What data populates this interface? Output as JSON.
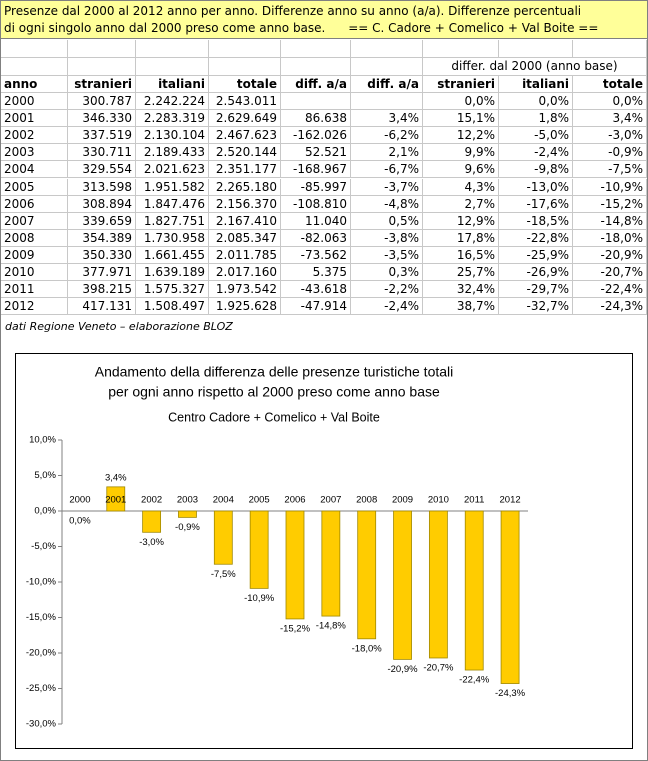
{
  "header": {
    "lines": [
      "Presenze dal 2000 al 2012 anno per anno. Differenze anno su anno (a/a). Differenze percentuali",
      "di ogni singolo anno dal 2000 preso come anno base.      == C. Cadore + Comelico + Val Boite =="
    ]
  },
  "table": {
    "group_header": "differ. dal 2000 (anno base)",
    "columns": [
      "anno",
      "stranieri",
      "italiani",
      "totale",
      "diff. a/a",
      "diff. a/a",
      "stranieri",
      "italiani",
      "totale"
    ],
    "rows": [
      [
        "2000",
        "300.787",
        "2.242.224",
        "2.543.011",
        null,
        null,
        "0,0%",
        "0,0%",
        "0,0%"
      ],
      [
        "2001",
        "346.330",
        "2.283.319",
        "2.629.649",
        "86.638",
        "3,4%",
        "15,1%",
        "1,8%",
        "3,4%"
      ],
      [
        "2002",
        "337.519",
        "2.130.104",
        "2.467.623",
        "-162.026",
        "-6,2%",
        "12,2%",
        "-5,0%",
        "-3,0%"
      ],
      [
        "2003",
        "330.711",
        "2.189.433",
        "2.520.144",
        "52.521",
        "2,1%",
        "9,9%",
        "-2,4%",
        "-0,9%"
      ],
      [
        "2004",
        "329.554",
        "2.021.623",
        "2.351.177",
        "-168.967",
        "-6,7%",
        "9,6%",
        "-9,8%",
        "-7,5%"
      ],
      [
        "2005",
        "313.598",
        "1.951.582",
        "2.265.180",
        "-85.997",
        "-3,7%",
        "4,3%",
        "-13,0%",
        "-10,9%"
      ],
      [
        "2006",
        "308.894",
        "1.847.476",
        "2.156.370",
        "-108.810",
        "-4,8%",
        "2,7%",
        "-17,6%",
        "-15,2%"
      ],
      [
        "2007",
        "339.659",
        "1.827.751",
        "2.167.410",
        "11.040",
        "0,5%",
        "12,9%",
        "-18,5%",
        "-14,8%"
      ],
      [
        "2008",
        "354.389",
        "1.730.958",
        "2.085.347",
        "-82.063",
        "-3,8%",
        "17,8%",
        "-22,8%",
        "-18,0%"
      ],
      [
        "2009",
        "350.330",
        "1.661.455",
        "2.011.785",
        "-73.562",
        "-3,5%",
        "16,5%",
        "-25,9%",
        "-20,9%"
      ],
      [
        "2010",
        "377.971",
        "1.639.189",
        "2.017.160",
        "5.375",
        "0,3%",
        "25,7%",
        "-26,9%",
        "-20,7%"
      ],
      [
        "2011",
        "398.215",
        "1.575.327",
        "1.973.542",
        "-43.618",
        "-2,2%",
        "32,4%",
        "-29,7%",
        "-22,4%"
      ],
      [
        "2012",
        "417.131",
        "1.508.497",
        "1.925.628",
        "-47.914",
        "-2,4%",
        "38,7%",
        "-32,7%",
        "-24,3%"
      ]
    ]
  },
  "note": "dati Regione Veneto – elaborazione BLOZ",
  "chart_data": {
    "type": "bar",
    "title": [
      "Andamento della differenza delle presenze turistiche totali",
      "per ogni anno rispetto al 2000 preso come anno base"
    ],
    "subtitle": "Centro Cadore + Comelico + Val Boite",
    "categories": [
      "2000",
      "2001",
      "2002",
      "2003",
      "2004",
      "2005",
      "2006",
      "2007",
      "2008",
      "2009",
      "2010",
      "2011",
      "2012"
    ],
    "values": [
      0,
      3.4,
      -3.0,
      -0.9,
      -7.5,
      -10.9,
      -15.2,
      -14.8,
      -18.0,
      -20.9,
      -20.7,
      -22.4,
      -24.3
    ],
    "value_labels": [
      "0,0%",
      "3,4%",
      "-3,0%",
      "-0,9%",
      "-7,5%",
      "-10,9%",
      "-15,2%",
      "-14,8%",
      "-18,0%",
      "-20,9%",
      "-20,7%",
      "-22,4%",
      "-24,3%"
    ],
    "color": "#ffcc00",
    "ylim": [
      -30,
      10
    ],
    "yticks": [
      {
        "value": -30,
        "label": "-30,0%"
      },
      {
        "value": -25,
        "label": "-25,0%"
      },
      {
        "value": -20,
        "label": "-20,0%"
      },
      {
        "value": -15,
        "label": "-15,0%"
      },
      {
        "value": -10,
        "label": "-10,0%"
      },
      {
        "value": -5,
        "label": "-5,0%"
      },
      {
        "value": 0,
        "label": "0,0%"
      },
      {
        "value": 5,
        "label": "5,0%"
      },
      {
        "value": 10,
        "label": "10,0%"
      }
    ],
    "grid": false
  }
}
